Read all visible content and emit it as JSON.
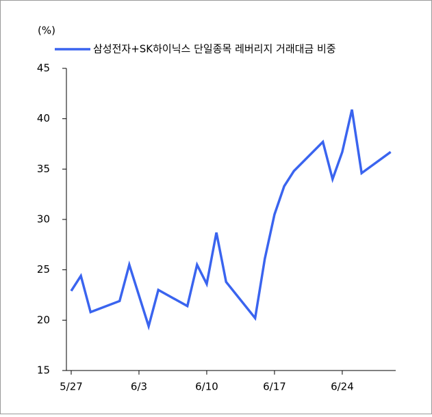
{
  "chart_data": {
    "type": "line",
    "y_label": "(%)",
    "x": [
      "5/27",
      "5/28",
      "5/29",
      "6/1",
      "6/2",
      "6/4",
      "6/5",
      "6/8",
      "6/9",
      "6/10",
      "6/11",
      "6/12",
      "6/15",
      "6/16",
      "6/17",
      "6/18",
      "6/19",
      "6/22",
      "6/23",
      "6/24",
      "6/25",
      "6/26",
      "6/29"
    ],
    "series": [
      {
        "name": "삼성전자+SK하이닉스 단일종목 레버리지 거래대금 비중",
        "color": "#3a64ef",
        "values": [
          22.9,
          24.4,
          20.8,
          21.9,
          25.5,
          19.4,
          23.0,
          21.4,
          25.5,
          23.6,
          28.7,
          23.8,
          20.2,
          26.1,
          30.5,
          33.3,
          34.8,
          37.7,
          34.0,
          36.7,
          40.9,
          34.6,
          36.7
        ]
      }
    ],
    "xticks": [
      "5/27",
      "6/3",
      "6/10",
      "6/17",
      "6/24"
    ],
    "ylim": [
      15,
      45
    ],
    "yticks": [
      15,
      20,
      25,
      30,
      35,
      40,
      45
    ],
    "grid": false,
    "legend": "top"
  }
}
